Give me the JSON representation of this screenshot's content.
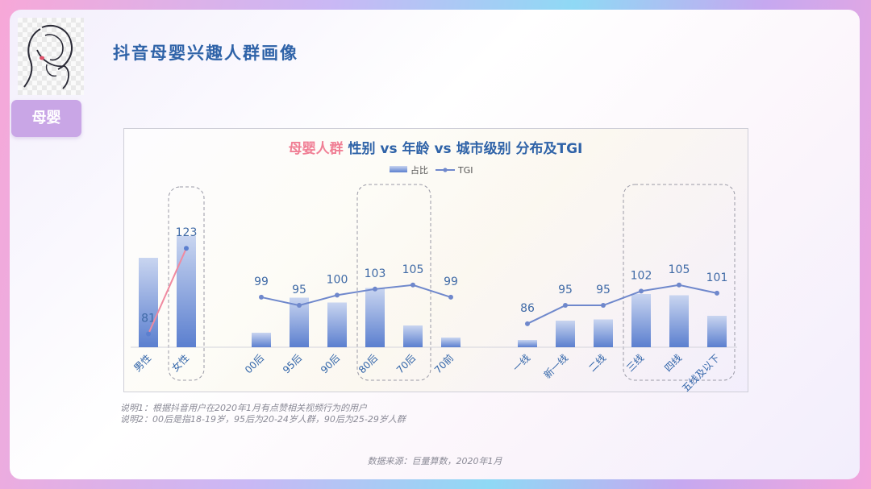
{
  "page": {
    "title": "抖音母婴兴趣人群画像",
    "tag_label": "母婴",
    "notes": [
      "说明1：根据抖音用户在2020年1月有点赞相关视频行为的用户",
      "说明2：00后是指18-19岁，95后为20-24岁人群，90后为25-29岁人群"
    ],
    "source": "数据来源：巨量算数，2020年1月"
  },
  "chart_data": {
    "type": "bar",
    "title_highlight": "母婴人群",
    "title_rest": " 性别 vs 年龄 vs 城市级别 分布及TGI",
    "legend": {
      "bar_label": "占比",
      "line_label": "TGI",
      "placement": "top-center"
    },
    "colors": {
      "bar": "#5b7fcf",
      "bar_light": "#c9d5f0",
      "tgi_gender": "#f08aa0",
      "tgi_other": "#6f88cc",
      "label": "#3f6aa6",
      "highlight": "#f07f95"
    },
    "groups": [
      {
        "name": "gender",
        "categories": [
          "男性",
          "女性"
        ],
        "share_values": [
          0.74,
          0.92
        ],
        "tgi": [
          81,
          123
        ],
        "highlighted": [
          "女性"
        ]
      },
      {
        "name": "age",
        "categories": [
          "00后",
          "95后",
          "90后",
          "80后",
          "70后",
          "70前"
        ],
        "share_values": [
          0.12,
          0.41,
          0.37,
          0.49,
          0.18,
          0.08
        ],
        "tgi": [
          99,
          95,
          100,
          103,
          105,
          99
        ],
        "highlighted": [
          "80后",
          "70后"
        ]
      },
      {
        "name": "city",
        "categories": [
          "一线",
          "新一线",
          "二线",
          "三线",
          "四线",
          "五线及以下"
        ],
        "share_values": [
          0.06,
          0.22,
          0.23,
          0.44,
          0.43,
          0.26
        ],
        "tgi": [
          86,
          95,
          95,
          102,
          105,
          101
        ],
        "highlighted": [
          "三线",
          "四线",
          "五线及以下"
        ]
      }
    ]
  }
}
